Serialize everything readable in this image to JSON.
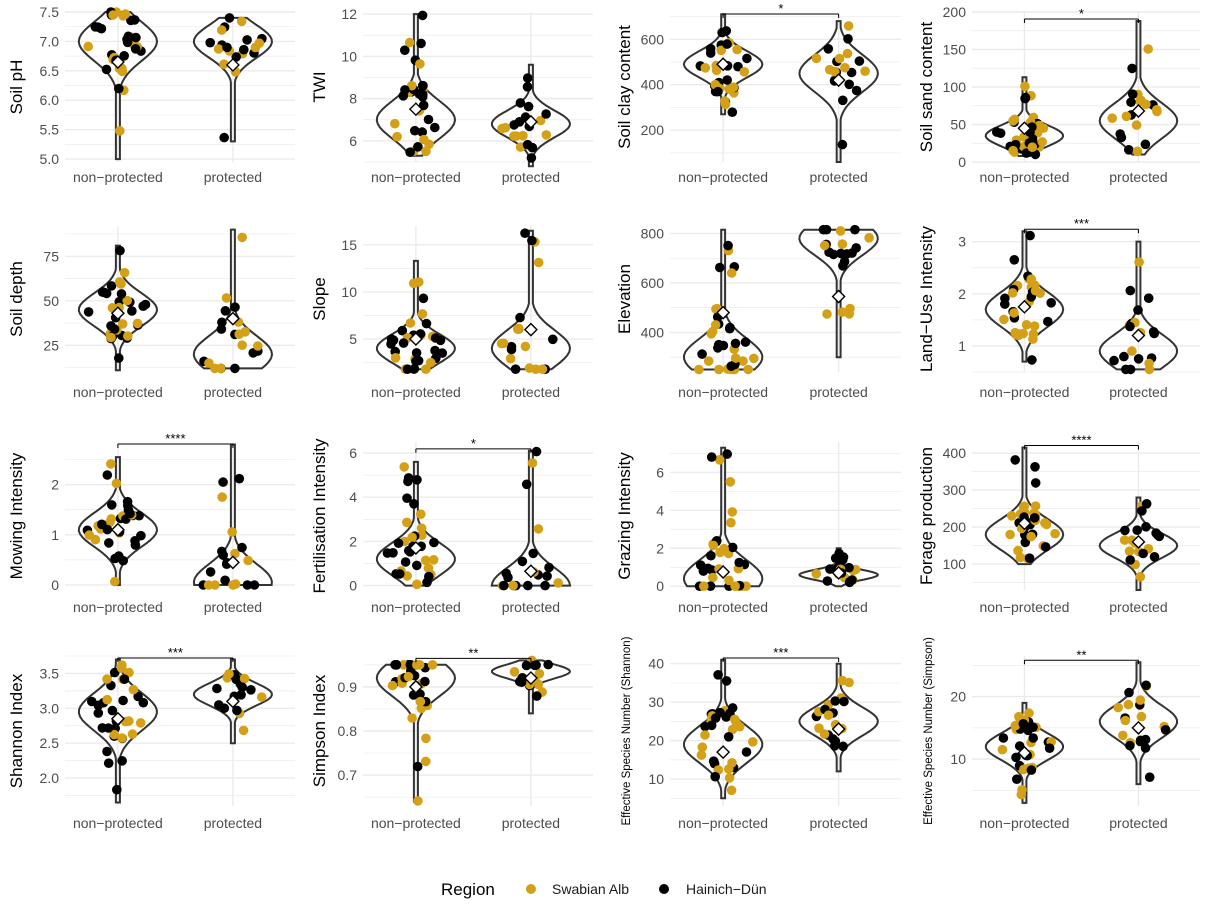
{
  "figure": {
    "legend": {
      "title": "Region",
      "entries": [
        {
          "label": "Swabian Alb",
          "color": "#D4A017"
        },
        {
          "label": "Hainich−Dün",
          "color": "#000000"
        }
      ]
    }
  },
  "chart_data": [
    {
      "type": "violin",
      "ylabel": "Soil pH",
      "categories": [
        "non−protected",
        "protected"
      ],
      "ylim": [
        4.95,
        7.5
      ],
      "yticks": [
        5.0,
        5.5,
        6.0,
        6.5,
        7.0,
        7.5
      ],
      "ytick_labels": [
        "5.0",
        "5.5",
        "6.0",
        "6.5",
        "7.0",
        "7.5"
      ],
      "means": [
        6.65,
        6.6
      ],
      "significance": null,
      "ranges": [
        [
          5.0,
          7.5
        ],
        [
          5.3,
          7.4
        ]
      ],
      "modes": [
        7.0,
        7.0
      ]
    },
    {
      "type": "violin",
      "ylabel": "TWI",
      "categories": [
        "non−protected",
        "protected"
      ],
      "ylim": [
        5.0,
        12.1
      ],
      "yticks": [
        6,
        8,
        10,
        12
      ],
      "ytick_labels": [
        "6",
        "8",
        "10",
        "12"
      ],
      "means": [
        7.5,
        6.9
      ],
      "significance": null,
      "ranges": [
        [
          5.3,
          12.0
        ],
        [
          4.8,
          9.6
        ]
      ],
      "modes": [
        7.0,
        6.8
      ]
    },
    {
      "type": "violin",
      "ylabel": "Soil clay content",
      "categories": [
        "non−protected",
        "protected"
      ],
      "ylim": [
        60,
        720
      ],
      "yticks": [
        200,
        400,
        600
      ],
      "ytick_labels": [
        "200",
        "400",
        "600"
      ],
      "means": [
        490,
        420
      ],
      "significance": "*",
      "ranges": [
        [
          270,
          710
        ],
        [
          60,
          680
        ]
      ],
      "modes": [
        490,
        450
      ]
    },
    {
      "type": "violin",
      "ylabel": "Soil sand content",
      "categories": [
        "non−protected",
        "protected"
      ],
      "ylim": [
        0,
        200
      ],
      "yticks": [
        0,
        50,
        100,
        150,
        200
      ],
      "ytick_labels": [
        "0",
        "50",
        "100",
        "150",
        "200"
      ],
      "means": [
        45,
        68
      ],
      "significance": "*",
      "ranges": [
        [
          8,
          113
        ],
        [
          10,
          188
        ]
      ],
      "modes": [
        35,
        55
      ]
    },
    {
      "type": "violin",
      "ylabel": "Soil depth",
      "categories": [
        "non−protected",
        "protected"
      ],
      "ylim": [
        10,
        92
      ],
      "yticks": [
        25,
        50,
        75
      ],
      "ytick_labels": [
        "25",
        "50",
        "75"
      ],
      "means": [
        43,
        40
      ],
      "significance": null,
      "ranges": [
        [
          11,
          81
        ],
        [
          12,
          90
        ]
      ],
      "modes": [
        45,
        20
      ]
    },
    {
      "type": "violin",
      "ylabel": "Slope",
      "categories": [
        "non−protected",
        "protected"
      ],
      "ylim": [
        1.5,
        17.0
      ],
      "yticks": [
        5,
        10,
        15
      ],
      "ytick_labels": [
        "5",
        "10",
        "15"
      ],
      "means": [
        5.0,
        6.0
      ],
      "significance": null,
      "ranges": [
        [
          1.8,
          13.3
        ],
        [
          1.8,
          16.5
        ]
      ],
      "modes": [
        4.0,
        4.0
      ]
    },
    {
      "type": "violin",
      "ylabel": "Elevation",
      "categories": [
        "non−protected",
        "protected"
      ],
      "ylim": [
        240,
        830
      ],
      "yticks": [
        400,
        600,
        800
      ],
      "ytick_labels": [
        "400",
        "600",
        "800"
      ],
      "means": [
        480,
        545
      ],
      "significance": null,
      "ranges": [
        [
          250,
          815
        ],
        [
          300,
          815
        ]
      ],
      "modes": [
        300,
        780
      ]
    },
    {
      "type": "violin",
      "ylabel": "Land−Use Intensity",
      "categories": [
        "non−protected",
        "protected"
      ],
      "ylim": [
        0.5,
        3.3
      ],
      "yticks": [
        1,
        2,
        3
      ],
      "ytick_labels": [
        "1",
        "2",
        "3"
      ],
      "means": [
        1.75,
        1.2
      ],
      "significance": "***",
      "ranges": [
        [
          0.7,
          3.2
        ],
        [
          0.55,
          3.0
        ]
      ],
      "modes": [
        1.7,
        0.9
      ]
    },
    {
      "type": "violin",
      "ylabel": "Mowing Intensity",
      "categories": [
        "non−protected",
        "protected"
      ],
      "ylim": [
        -0.1,
        2.85
      ],
      "yticks": [
        0,
        1,
        2
      ],
      "ytick_labels": [
        "0",
        "1",
        "2"
      ],
      "means": [
        1.1,
        0.45
      ],
      "significance": "****",
      "ranges": [
        [
          0.0,
          2.55
        ],
        [
          0.0,
          2.8
        ]
      ],
      "modes": [
        1.1,
        0.05
      ]
    },
    {
      "type": "violin",
      "ylabel": "Fertilisation Intensity",
      "categories": [
        "non−protected",
        "protected"
      ],
      "ylim": [
        -0.2,
        6.5
      ],
      "yticks": [
        0,
        2,
        4,
        6
      ],
      "ytick_labels": [
        "0",
        "2",
        "4",
        "6"
      ],
      "means": [
        1.7,
        0.65
      ],
      "significance": "*",
      "ranges": [
        [
          0.0,
          5.6
        ],
        [
          0.0,
          6.1
        ]
      ],
      "modes": [
        1.2,
        0.0
      ]
    },
    {
      "type": "violin",
      "ylabel": "Grazing Intensity",
      "categories": [
        "non−protected",
        "protected"
      ],
      "ylim": [
        -0.2,
        7.6
      ],
      "yticks": [
        0,
        2,
        4,
        6
      ],
      "ytick_labels": [
        "0",
        "2",
        "4",
        "6"
      ],
      "means": [
        0.75,
        0.7
      ],
      "significance": null,
      "ranges": [
        [
          0.0,
          7.3
        ],
        [
          0.0,
          2.0
        ]
      ],
      "modes": [
        0.4,
        0.6
      ]
    },
    {
      "type": "violin",
      "ylabel": "Forage production",
      "categories": [
        "non−protected",
        "protected"
      ],
      "ylim": [
        30,
        430
      ],
      "yticks": [
        100,
        200,
        300,
        400
      ],
      "ytick_labels": [
        "100",
        "200",
        "300",
        "400"
      ],
      "means": [
        210,
        160
      ],
      "significance": "****",
      "ranges": [
        [
          100,
          415
        ],
        [
          30,
          280
        ]
      ],
      "modes": [
        180,
        150
      ]
    },
    {
      "type": "violin",
      "ylabel": "Shannon Index",
      "categories": [
        "non−protected",
        "protected"
      ],
      "ylim": [
        1.6,
        3.75
      ],
      "yticks": [
        2.0,
        2.5,
        3.0,
        3.5
      ],
      "ytick_labels": [
        "2.0",
        "2.5",
        "3.0",
        "3.5"
      ],
      "means": [
        2.85,
        3.1
      ],
      "significance": "***",
      "ranges": [
        [
          1.65,
          3.7
        ],
        [
          2.5,
          3.7
        ]
      ],
      "modes": [
        2.95,
        3.2
      ]
    },
    {
      "type": "violin",
      "ylabel": "Simpson Index",
      "categories": [
        "non−protected",
        "protected"
      ],
      "ylim": [
        0.63,
        0.97
      ],
      "yticks": [
        0.7,
        0.8,
        0.9
      ],
      "ytick_labels": [
        "0.7",
        "0.8",
        "0.9"
      ],
      "means": [
        0.9,
        0.92
      ],
      "significance": "**",
      "ranges": [
        [
          0.64,
          0.95
        ],
        [
          0.84,
          0.96
        ]
      ],
      "modes": [
        0.92,
        0.935
      ]
    },
    {
      "type": "violin",
      "ylabel": "Effective Species Number (Shannon)",
      "small_label": true,
      "categories": [
        "non−protected",
        "protected"
      ],
      "ylim": [
        3,
        42
      ],
      "yticks": [
        10,
        20,
        30,
        40
      ],
      "ytick_labels": [
        "10",
        "20",
        "30",
        "40"
      ],
      "means": [
        17,
        23
      ],
      "significance": "***",
      "ranges": [
        [
          5,
          41
        ],
        [
          12,
          40
        ]
      ],
      "modes": [
        19,
        25
      ]
    },
    {
      "type": "violin",
      "ylabel": "Effective Species Number (Simpson)",
      "small_label": true,
      "categories": [
        "non−protected",
        "protected"
      ],
      "ylim": [
        2.5,
        26.5
      ],
      "yticks": [
        10,
        20
      ],
      "ytick_labels": [
        "10",
        "20"
      ],
      "means": [
        11,
        15
      ],
      "significance": "**",
      "ranges": [
        [
          3,
          19
        ],
        [
          6,
          25.5
        ]
      ],
      "modes": [
        12,
        16
      ]
    }
  ]
}
